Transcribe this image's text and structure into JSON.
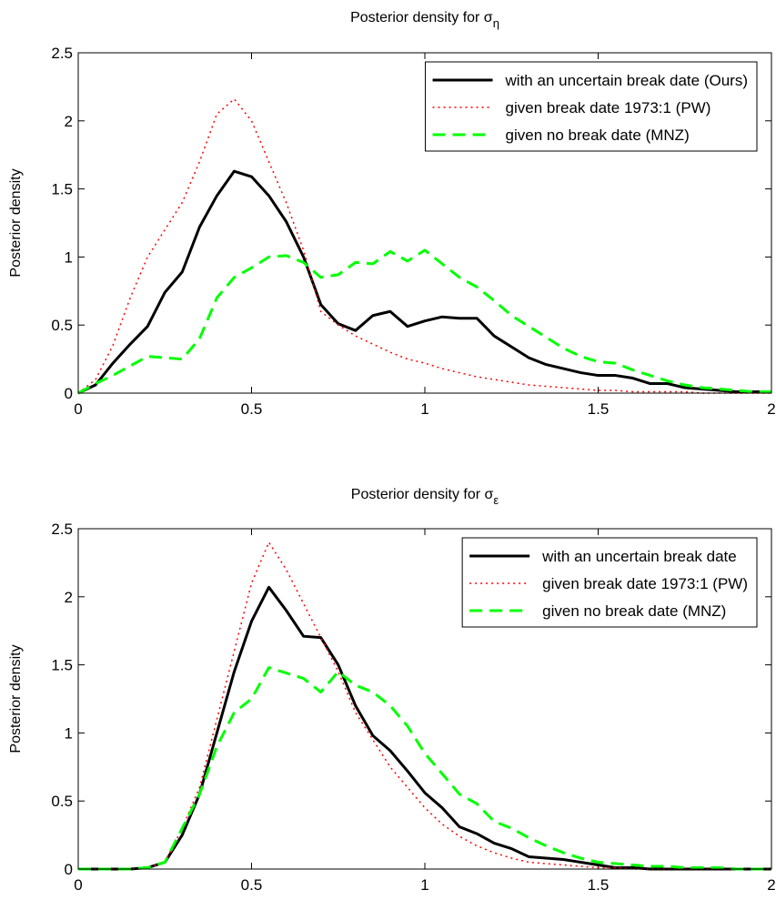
{
  "chart_data": [
    {
      "type": "line",
      "title": "Posterior density for σ",
      "title_subscript": "η",
      "ylabel": "Posterior density",
      "x": [
        0,
        0.05,
        0.1,
        0.15,
        0.2,
        0.25,
        0.3,
        0.35,
        0.4,
        0.45,
        0.5,
        0.55,
        0.6,
        0.65,
        0.7,
        0.75,
        0.8,
        0.85,
        0.9,
        0.95,
        1,
        1.05,
        1.1,
        1.15,
        1.2,
        1.25,
        1.3,
        1.35,
        1.4,
        1.45,
        1.5,
        1.55,
        1.6,
        1.65,
        1.7,
        1.75,
        1.8,
        1.85,
        1.9,
        1.95,
        2
      ],
      "xlim": [
        0,
        2
      ],
      "xticks": [
        0,
        0.5,
        1,
        1.5,
        2
      ],
      "ylim": [
        0,
        2.5
      ],
      "yticks": [
        0,
        0.5,
        1,
        1.5,
        2,
        2.5
      ],
      "legend": "upper right",
      "series": [
        {
          "name": "with an uncertain break date (Ours)",
          "color": "#000000",
          "line_style": "solid",
          "values": [
            0,
            0.06,
            0.22,
            0.36,
            0.49,
            0.74,
            0.89,
            1.22,
            1.45,
            1.63,
            1.59,
            1.45,
            1.26,
            1.0,
            0.65,
            0.51,
            0.46,
            0.57,
            0.6,
            0.49,
            0.53,
            0.56,
            0.55,
            0.55,
            0.42,
            0.34,
            0.26,
            0.21,
            0.18,
            0.15,
            0.13,
            0.13,
            0.11,
            0.07,
            0.07,
            0.04,
            0.03,
            0.02,
            0.01,
            0.01,
            0.01
          ]
        },
        {
          "name": "given break date 1973:1 (PW)",
          "color": "#ff0000",
          "line_style": "dotted",
          "values": [
            0,
            0.1,
            0.35,
            0.7,
            1.0,
            1.2,
            1.4,
            1.7,
            2.05,
            2.16,
            2.0,
            1.7,
            1.4,
            1.05,
            0.6,
            0.5,
            0.42,
            0.36,
            0.3,
            0.25,
            0.22,
            0.18,
            0.15,
            0.12,
            0.1,
            0.08,
            0.06,
            0.05,
            0.04,
            0.03,
            0.02,
            0.02,
            0.01,
            0.01,
            0.01,
            0.01,
            0,
            0,
            0,
            0,
            0
          ]
        },
        {
          "name": "given no break date (MNZ)",
          "color": "#00ff00",
          "line_style": "dashed",
          "values": [
            0,
            0.07,
            0.13,
            0.2,
            0.27,
            0.26,
            0.25,
            0.4,
            0.7,
            0.85,
            0.92,
            1.0,
            1.01,
            0.96,
            0.85,
            0.87,
            0.96,
            0.95,
            1.04,
            0.97,
            1.05,
            0.95,
            0.85,
            0.78,
            0.68,
            0.57,
            0.49,
            0.41,
            0.33,
            0.27,
            0.23,
            0.22,
            0.17,
            0.13,
            0.09,
            0.06,
            0.04,
            0.03,
            0.02,
            0.01,
            0.01
          ]
        }
      ]
    },
    {
      "type": "line",
      "title": "Posterior density for σ",
      "title_subscript": "ε",
      "ylabel": "Posterior density",
      "x": [
        0,
        0.05,
        0.1,
        0.15,
        0.2,
        0.25,
        0.3,
        0.35,
        0.4,
        0.45,
        0.5,
        0.55,
        0.6,
        0.65,
        0.7,
        0.75,
        0.8,
        0.85,
        0.9,
        0.95,
        1,
        1.05,
        1.1,
        1.15,
        1.2,
        1.25,
        1.3,
        1.35,
        1.4,
        1.45,
        1.5,
        1.55,
        1.6,
        1.65,
        1.7,
        1.75,
        1.8,
        1.85,
        1.9,
        1.95,
        2
      ],
      "xlim": [
        0,
        2
      ],
      "xticks": [
        0,
        0.5,
        1,
        1.5,
        2
      ],
      "ylim": [
        0,
        2.5
      ],
      "yticks": [
        0,
        0.5,
        1,
        1.5,
        2,
        2.5
      ],
      "legend": "upper right",
      "series": [
        {
          "name": "with an uncertain break date",
          "color": "#000000",
          "line_style": "solid",
          "values": [
            0,
            0,
            0,
            0,
            0.01,
            0.05,
            0.25,
            0.55,
            1.0,
            1.45,
            1.82,
            2.07,
            1.9,
            1.71,
            1.7,
            1.5,
            1.2,
            0.98,
            0.87,
            0.72,
            0.56,
            0.45,
            0.31,
            0.26,
            0.19,
            0.15,
            0.09,
            0.08,
            0.07,
            0.05,
            0.03,
            0.01,
            0.01,
            0,
            0,
            0,
            0,
            0,
            0,
            0,
            0
          ]
        },
        {
          "name": "given break date 1973:1 (PW)",
          "color": "#ff0000",
          "line_style": "dotted",
          "values": [
            0,
            0,
            0,
            0,
            0.01,
            0.05,
            0.3,
            0.6,
            1.1,
            1.6,
            2.1,
            2.4,
            2.2,
            1.95,
            1.7,
            1.45,
            1.15,
            0.95,
            0.75,
            0.6,
            0.45,
            0.33,
            0.24,
            0.17,
            0.12,
            0.08,
            0.05,
            0.04,
            0.03,
            0.02,
            0.01,
            0.01,
            0,
            0,
            0,
            0,
            0,
            0,
            0,
            0,
            0
          ]
        },
        {
          "name": "given no break date (MNZ)",
          "color": "#00ff00",
          "line_style": "dashed",
          "values": [
            0,
            0,
            0,
            0,
            0.01,
            0.05,
            0.3,
            0.55,
            0.9,
            1.15,
            1.25,
            1.48,
            1.44,
            1.4,
            1.3,
            1.45,
            1.35,
            1.3,
            1.2,
            1.05,
            0.85,
            0.7,
            0.55,
            0.48,
            0.35,
            0.3,
            0.23,
            0.17,
            0.12,
            0.08,
            0.05,
            0.04,
            0.03,
            0.02,
            0.02,
            0.01,
            0.01,
            0.01,
            0,
            0,
            0
          ]
        }
      ]
    }
  ]
}
